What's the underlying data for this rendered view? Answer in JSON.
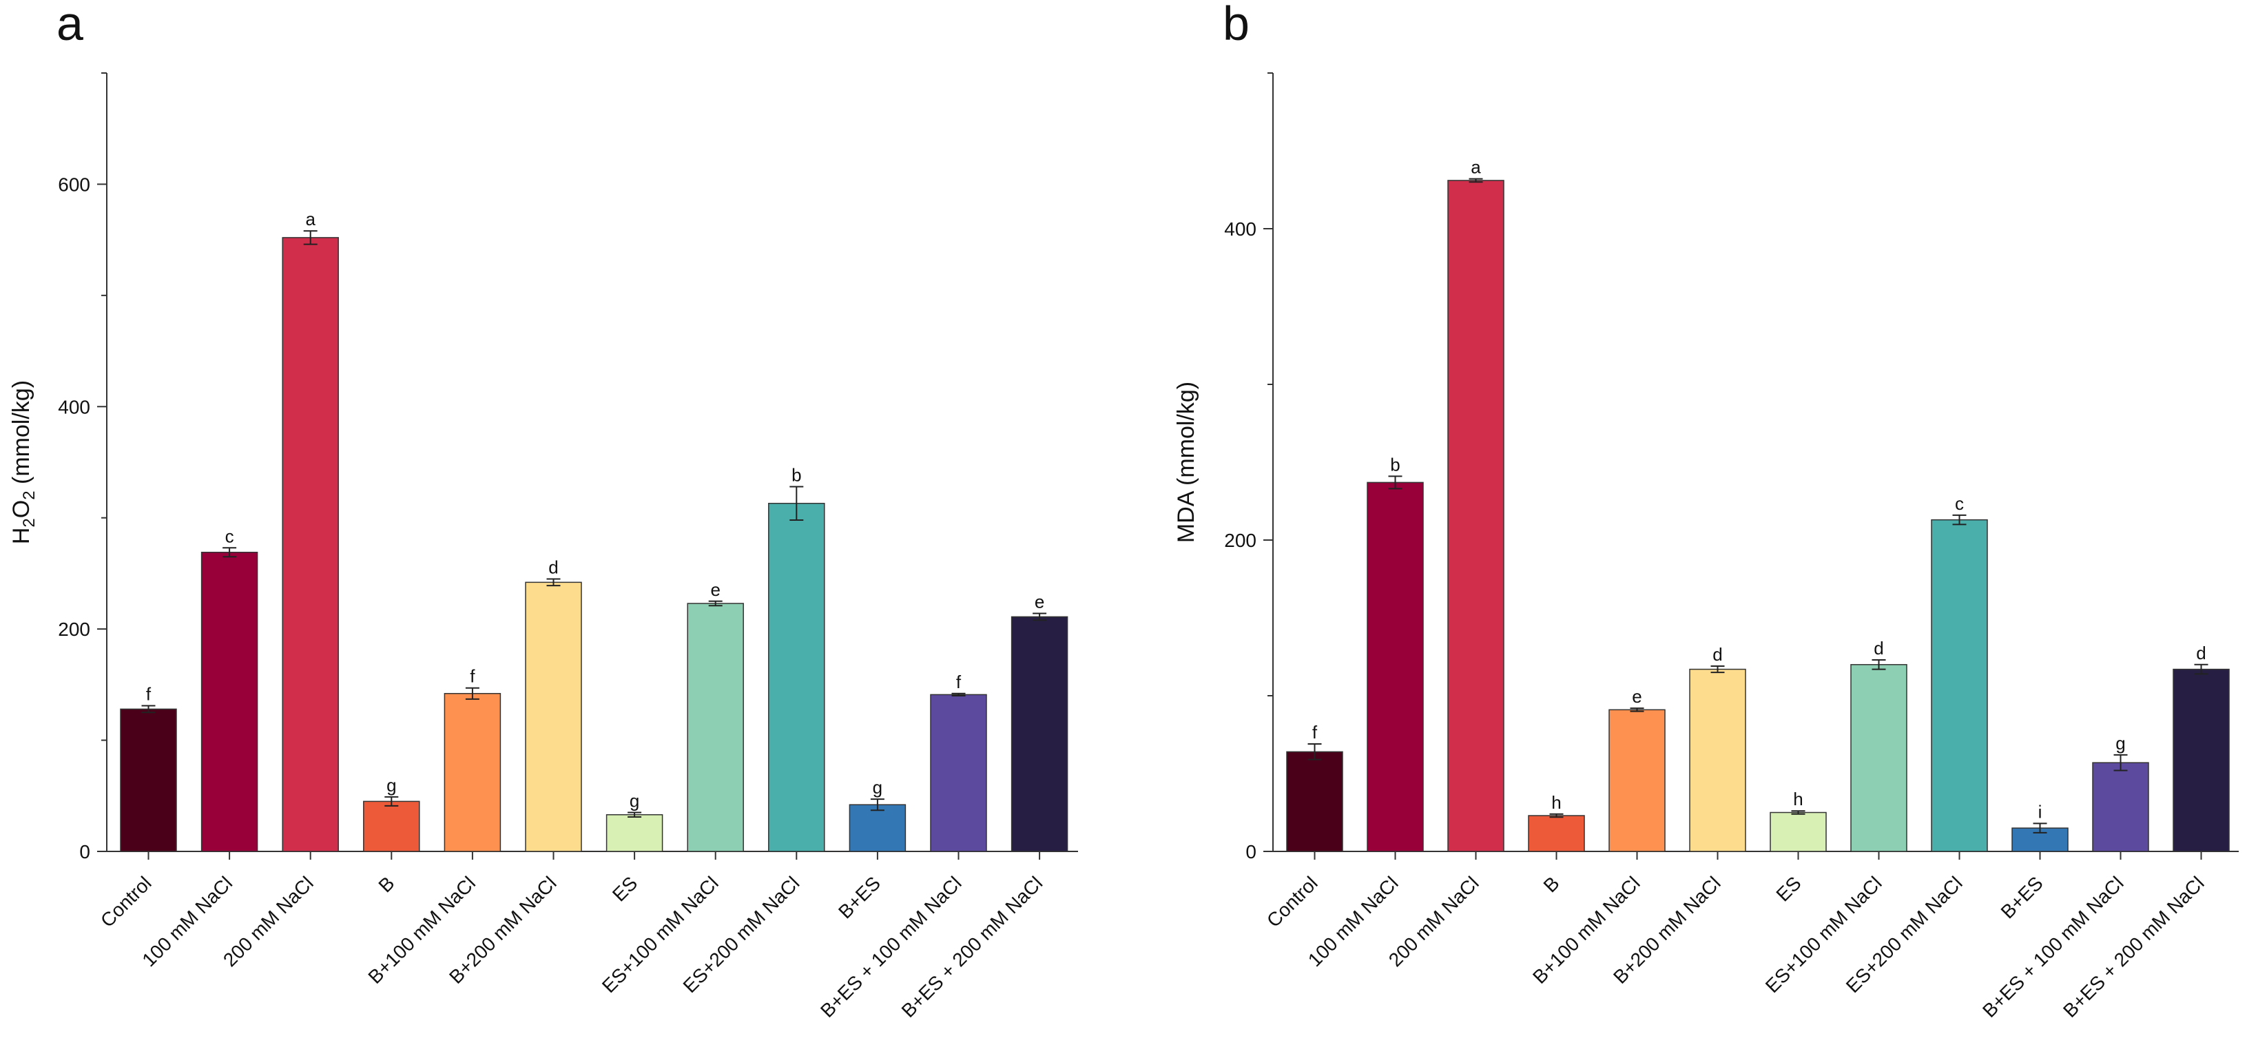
{
  "figure": {
    "panels": [
      "a",
      "b"
    ]
  },
  "chart_data": [
    {
      "type": "bar",
      "panel_label": "a",
      "title": "",
      "xlabel": "",
      "ylabel": "H2O2 (mmol/kg)",
      "ylabel_parts": [
        "H",
        "2",
        "O",
        "2",
        " (mmol/kg)"
      ],
      "ylim": [
        0,
        700
      ],
      "yticks": [
        0,
        200,
        400,
        600
      ],
      "minor_yticks": [
        100,
        300,
        500,
        700
      ],
      "grid": false,
      "categories": [
        "Control",
        "100 mM NaCl",
        "200 mM NaCl",
        "B",
        "B+100 mM NaCl",
        "B+200 mM NaCl",
        "ES",
        "ES+100 mM NaCl",
        "ES+200 mM NaCl",
        "B+ES",
        "B+ES + 100 mM NaCl",
        "B+ES + 200 mM NaCl"
      ],
      "values": [
        128,
        269,
        552,
        45,
        142,
        242,
        33,
        223,
        313,
        42,
        141,
        211
      ],
      "errors": [
        3,
        4,
        6,
        4,
        5,
        3,
        2,
        2,
        15,
        5,
        1,
        3
      ],
      "letters": [
        "f",
        "c",
        "a",
        "g",
        "f",
        "d",
        "g",
        "e",
        "b",
        "g",
        "f",
        "e"
      ],
      "colors": [
        "#4a0019",
        "#98003a",
        "#d12e4c",
        "#ec5a39",
        "#fe914f",
        "#fddc8e",
        "#d8f0b4",
        "#8dcfb3",
        "#4aafab",
        "#3378b5",
        "#5c4a9e",
        "#261f43"
      ]
    },
    {
      "type": "bar",
      "panel_label": "b",
      "title": "",
      "xlabel": "",
      "ylabel": "MDA (mmol/kg)",
      "ylim": [
        0,
        500
      ],
      "yticks": [
        0,
        200,
        400
      ],
      "minor_yticks": [
        100,
        300,
        500
      ],
      "grid": false,
      "categories": [
        "Control",
        "100 mM NaCl",
        "200 mM NaCl",
        "B",
        "B+100 mM NaCl",
        "B+200 mM NaCl",
        "ES",
        "ES+100 mM NaCl",
        "ES+200 mM NaCl",
        "B+ES",
        "B+ES + 100 mM NaCl",
        "B+ES + 200 mM NaCl"
      ],
      "values": [
        64,
        237,
        431,
        23,
        91,
        117,
        25,
        120,
        213,
        15,
        57,
        117
      ],
      "errors": [
        5,
        4,
        1,
        1,
        1,
        2,
        1,
        3,
        3,
        3,
        5,
        3
      ],
      "letters": [
        "f",
        "b",
        "a",
        "h",
        "e",
        "d",
        "h",
        "d",
        "c",
        "i",
        "g",
        "d"
      ],
      "colors": [
        "#4a0019",
        "#98003a",
        "#d12e4c",
        "#ec5a39",
        "#fe914f",
        "#fddc8e",
        "#d8f0b4",
        "#8dcfb3",
        "#4aafab",
        "#3378b5",
        "#5c4a9e",
        "#261f43"
      ]
    }
  ]
}
